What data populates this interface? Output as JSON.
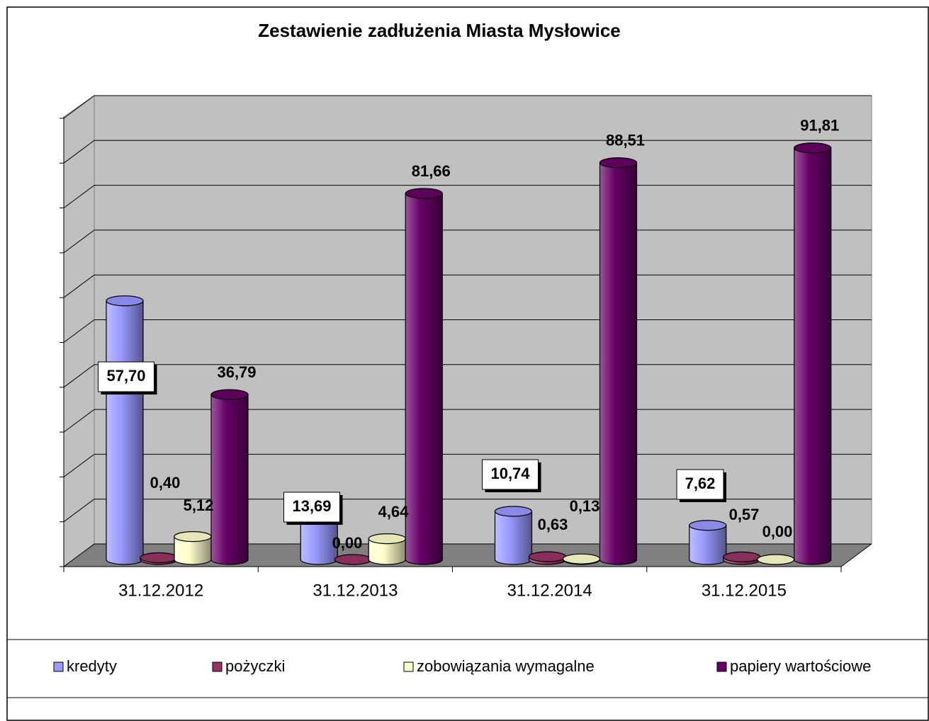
{
  "chart_data": {
    "type": "bar3d",
    "title": "Zestawienie zadłużenia Miasta Mysłowice",
    "categories": [
      "31.12.2012",
      "31.12.2013",
      "31.12.2014",
      "31.12.2015"
    ],
    "series": [
      {
        "name": "kredyty",
        "color": "#9999ff",
        "values": [
          57.7,
          13.69,
          10.74,
          7.62
        ],
        "value_labels": [
          "57,70",
          "13,69",
          "10,74",
          "7,62"
        ]
      },
      {
        "name": "pożyczki",
        "color": "#993366",
        "values": [
          0.4,
          0.0,
          0.63,
          0.57
        ],
        "value_labels": [
          "0,40",
          "0,00",
          "0,63",
          "0,57"
        ]
      },
      {
        "name": "zobowiązania wymagalne",
        "color": "#ffffcc",
        "values": [
          5.12,
          4.64,
          0.13,
          0.0
        ],
        "value_labels": [
          "5,12",
          "4,64",
          "0,13",
          "0,00"
        ]
      },
      {
        "name": "papiery wartościowe",
        "color": "#660066",
        "values": [
          36.79,
          81.66,
          88.51,
          91.81
        ],
        "value_labels": [
          "36,79",
          "81,66",
          "88,51",
          "91,81"
        ]
      }
    ],
    "ylim": [
      0,
      100
    ],
    "yticks": [
      0,
      10,
      20,
      30,
      40,
      50,
      60,
      70,
      80,
      90,
      100
    ],
    "grid": true,
    "legend": "bottom"
  }
}
